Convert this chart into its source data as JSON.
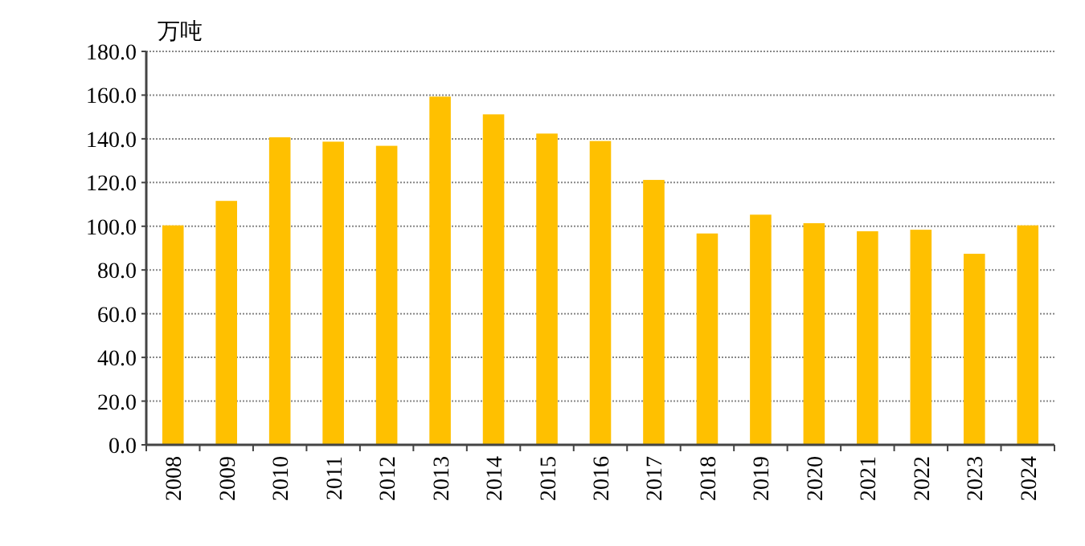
{
  "chart_data": {
    "type": "bar",
    "ylabel": "万吨",
    "categories": [
      "2008",
      "2009",
      "2010",
      "2011",
      "2012",
      "2013",
      "2014",
      "2015",
      "2016",
      "2017",
      "2018",
      "2019",
      "2020",
      "2021",
      "2022",
      "2023",
      "2024"
    ],
    "values": [
      100.4,
      111.6,
      140.7,
      138.7,
      136.8,
      159.3,
      151.2,
      142.4,
      139.0,
      121.2,
      96.7,
      105.3,
      101.4,
      97.7,
      98.4,
      87.4,
      100.4
    ],
    "color": "#ffc000",
    "ylim": [
      0,
      180
    ],
    "yticks": [
      {
        "value": 0,
        "label": "0.0"
      },
      {
        "value": 20,
        "label": "20.0"
      },
      {
        "value": 40,
        "label": "40.0"
      },
      {
        "value": 60,
        "label": "60.0"
      },
      {
        "value": 80,
        "label": "80.0"
      },
      {
        "value": 100,
        "label": "100.0"
      },
      {
        "value": 120,
        "label": "120.0"
      },
      {
        "value": 140,
        "label": "140.0"
      },
      {
        "value": 160,
        "label": "160.0"
      },
      {
        "value": 180,
        "label": "180.0"
      }
    ],
    "grid": "y"
  }
}
